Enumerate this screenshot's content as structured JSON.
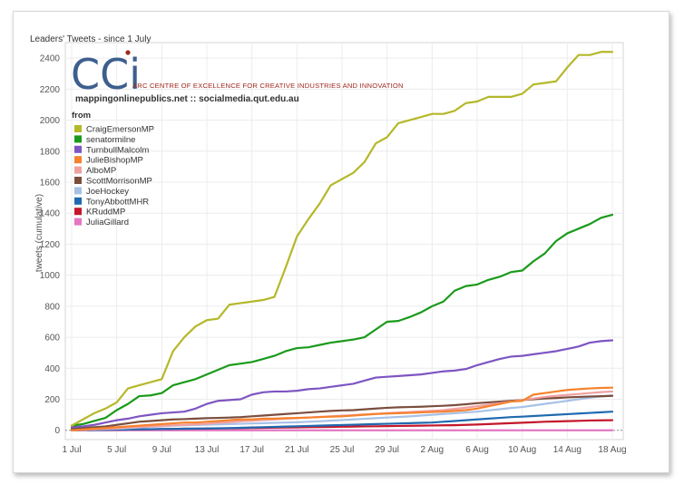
{
  "chart_data": {
    "type": "line",
    "title": "Leaders' Tweets - since 1 July",
    "xlabel": "",
    "ylabel": "tweets (cumulative)",
    "ylim": [
      -60,
      2500
    ],
    "yticks": [
      0,
      200,
      400,
      600,
      800,
      1000,
      1200,
      1400,
      1600,
      1800,
      2000,
      2200,
      2400
    ],
    "x": [
      "1 Jul",
      "2 Jul",
      "3 Jul",
      "4 Jul",
      "5 Jul",
      "6 Jul",
      "7 Jul",
      "8 Jul",
      "9 Jul",
      "10 Jul",
      "11 Jul",
      "12 Jul",
      "13 Jul",
      "14 Jul",
      "15 Jul",
      "16 Jul",
      "17 Jul",
      "18 Jul",
      "19 Jul",
      "20 Jul",
      "21 Jul",
      "22 Jul",
      "23 Jul",
      "24 Jul",
      "25 Jul",
      "26 Jul",
      "27 Jul",
      "28 Jul",
      "29 Jul",
      "30 Jul",
      "31 Jul",
      "1 Aug",
      "2 Aug",
      "3 Aug",
      "4 Aug",
      "5 Aug",
      "6 Aug",
      "7 Aug",
      "8 Aug",
      "9 Aug",
      "10 Aug",
      "11 Aug",
      "12 Aug",
      "13 Aug",
      "14 Aug",
      "15 Aug",
      "16 Aug",
      "17 Aug",
      "18 Aug"
    ],
    "xtick_labels": [
      "1 Jul",
      "5 Jul",
      "9 Jul",
      "13 Jul",
      "17 Jul",
      "21 Jul",
      "25 Jul",
      "29 Jul",
      "2 Aug",
      "6 Aug",
      "10 Aug",
      "14 Aug",
      "18 Aug"
    ],
    "xtick_step": 4,
    "grid": true,
    "legend": {
      "title": "from",
      "position": "top-left"
    },
    "series": [
      {
        "name": "CraigEmersonMP",
        "color": "#b5b829",
        "values": [
          30,
          70,
          110,
          140,
          180,
          270,
          290,
          310,
          330,
          510,
          600,
          670,
          710,
          720,
          810,
          820,
          830,
          840,
          860,
          1050,
          1250,
          1360,
          1460,
          1580,
          1620,
          1660,
          1730,
          1850,
          1890,
          1980,
          2000,
          2020,
          2040,
          2040,
          2060,
          2110,
          2120,
          2150,
          2150,
          2150,
          2170,
          2230,
          2240,
          2250,
          2340,
          2420,
          2420,
          2440,
          2440
        ]
      },
      {
        "name": "senatormilne",
        "color": "#1a9a1a",
        "values": [
          30,
          40,
          60,
          80,
          130,
          170,
          220,
          225,
          240,
          290,
          310,
          330,
          360,
          390,
          420,
          430,
          440,
          460,
          480,
          510,
          530,
          535,
          550,
          565,
          575,
          585,
          600,
          650,
          700,
          705,
          730,
          760,
          800,
          830,
          900,
          930,
          940,
          970,
          990,
          1020,
          1030,
          1090,
          1140,
          1220,
          1270,
          1300,
          1330,
          1370,
          1390
        ]
      },
      {
        "name": "TurnbullMalcolm",
        "color": "#7e55c2",
        "values": [
          20,
          25,
          35,
          50,
          65,
          75,
          90,
          100,
          110,
          115,
          120,
          140,
          170,
          190,
          195,
          200,
          230,
          245,
          250,
          250,
          255,
          265,
          270,
          280,
          290,
          300,
          320,
          340,
          345,
          350,
          355,
          360,
          370,
          380,
          385,
          395,
          420,
          440,
          460,
          475,
          480,
          490,
          500,
          510,
          525,
          540,
          565,
          575,
          580
        ]
      },
      {
        "name": "JulieBishopMP",
        "color": "#f5822d",
        "values": [
          0,
          5,
          10,
          15,
          20,
          25,
          30,
          35,
          40,
          45,
          50,
          50,
          55,
          60,
          65,
          70,
          70,
          75,
          75,
          78,
          80,
          82,
          85,
          88,
          90,
          95,
          100,
          105,
          108,
          110,
          112,
          115,
          118,
          120,
          125,
          130,
          140,
          155,
          170,
          185,
          190,
          230,
          240,
          250,
          260,
          265,
          270,
          273,
          275
        ]
      },
      {
        "name": "AlboMP",
        "color": "#f0a0a0",
        "values": [
          0,
          3,
          6,
          9,
          12,
          18,
          22,
          25,
          28,
          32,
          35,
          38,
          42,
          48,
          52,
          58,
          62,
          66,
          70,
          74,
          78,
          82,
          86,
          90,
          94,
          98,
          102,
          106,
          110,
          114,
          118,
          122,
          126,
          130,
          138,
          146,
          155,
          165,
          175,
          185,
          195,
          205,
          215,
          222,
          228,
          234,
          240,
          246,
          250
        ]
      },
      {
        "name": "ScottMorrisonMP",
        "color": "#7a4e3e",
        "values": [
          10,
          15,
          20,
          25,
          35,
          45,
          55,
          60,
          65,
          70,
          72,
          75,
          78,
          80,
          82,
          85,
          90,
          95,
          100,
          105,
          110,
          115,
          120,
          125,
          128,
          130,
          135,
          140,
          145,
          148,
          150,
          152,
          155,
          158,
          162,
          168,
          175,
          180,
          185,
          190,
          195,
          200,
          205,
          208,
          212,
          215,
          218,
          220,
          222
        ]
      },
      {
        "name": "JoeHockey",
        "color": "#a7c1e6",
        "values": [
          0,
          3,
          6,
          8,
          10,
          14,
          18,
          22,
          26,
          30,
          32,
          34,
          36,
          38,
          40,
          42,
          44,
          46,
          48,
          50,
          52,
          55,
          58,
          62,
          66,
          70,
          74,
          78,
          82,
          86,
          90,
          95,
          100,
          105,
          110,
          115,
          120,
          128,
          136,
          144,
          150,
          160,
          170,
          180,
          190,
          200,
          210,
          218,
          225
        ]
      },
      {
        "name": "TonyAbbottMHR",
        "color": "#1f6ab0",
        "values": [
          0,
          1,
          2,
          3,
          4,
          5,
          6,
          7,
          8,
          9,
          10,
          11,
          12,
          13,
          14,
          16,
          18,
          20,
          22,
          24,
          26,
          28,
          30,
          32,
          34,
          36,
          38,
          40,
          42,
          44,
          46,
          48,
          50,
          55,
          60,
          65,
          70,
          75,
          80,
          85,
          88,
          92,
          96,
          100,
          104,
          108,
          112,
          116,
          120
        ]
      },
      {
        "name": "KRuddMP",
        "color": "#c4172c",
        "values": [
          0,
          1,
          2,
          3,
          4,
          5,
          6,
          7,
          8,
          9,
          10,
          10,
          11,
          12,
          13,
          14,
          15,
          16,
          17,
          18,
          19,
          20,
          21,
          22,
          23,
          24,
          25,
          26,
          27,
          28,
          29,
          30,
          31,
          32,
          33,
          35,
          37,
          40,
          43,
          46,
          49,
          52,
          55,
          57,
          59,
          61,
          63,
          64,
          65
        ]
      },
      {
        "name": "JuliaGillard",
        "color": "#e377c2",
        "values": [
          0,
          0,
          0,
          0,
          0,
          0,
          0,
          0,
          0,
          0,
          0,
          0,
          0,
          0,
          0,
          0,
          0,
          0,
          0,
          0,
          0,
          0,
          0,
          0,
          0,
          0,
          0,
          0,
          0,
          0,
          0,
          0,
          0,
          0,
          0,
          0,
          0,
          0,
          0,
          0,
          0,
          0,
          0,
          0,
          0,
          0,
          0,
          0,
          0
        ]
      }
    ]
  },
  "logo": {
    "letters": "CCi",
    "caption": "ARC CENTRE OF EXCELLENCE FOR CREATIVE INDUSTRIES AND INNOVATION",
    "url": "mappingonlinepublics.net :: socialmedia.qut.edu.au",
    "letter_color": "#3d5f8e",
    "accent_color": "#a0281e"
  }
}
